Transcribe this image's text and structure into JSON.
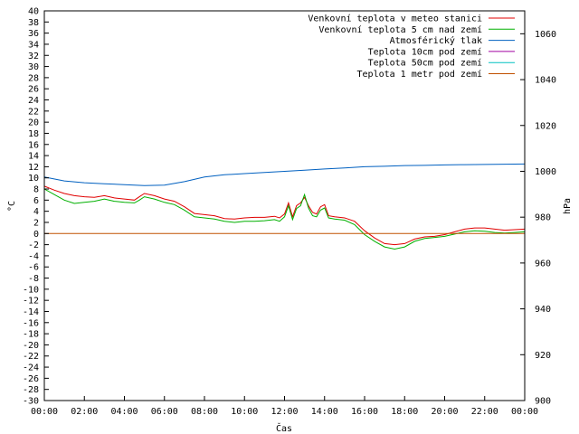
{
  "chart_data": {
    "type": "line",
    "xlabel": "Čas",
    "ylabel": "°C",
    "y2label": "hPa",
    "ylim": [
      -30,
      40
    ],
    "y2lim": [
      900,
      1070
    ],
    "xlim": [
      0,
      24
    ],
    "yticks": [
      "-30",
      "-28",
      "-26",
      "-24",
      "-22",
      "-20",
      "-18",
      "-16",
      "-14",
      "-12",
      "-10",
      "-8",
      "-6",
      "-4",
      "-2",
      "0",
      "2",
      "4",
      "6",
      "8",
      "10",
      "12",
      "14",
      "16",
      "18",
      "20",
      "22",
      "24",
      "26",
      "28",
      "30",
      "32",
      "34",
      "36",
      "38",
      "40"
    ],
    "y2ticks": [
      "900",
      "920",
      "940",
      "960",
      "980",
      "1000",
      "1020",
      "1040",
      "1060"
    ],
    "xticks": [
      "00:00",
      "02:00",
      "04:00",
      "06:00",
      "08:00",
      "10:00",
      "12:00",
      "14:00",
      "16:00",
      "18:00",
      "20:00",
      "22:00",
      "00:00"
    ],
    "grid": false,
    "legend_position": "top-right",
    "series": [
      {
        "name": "Venkovní teplota v meteo stanici",
        "color": "#e00000",
        "axis": "left",
        "x": [
          0,
          0.5,
          1,
          1.5,
          2,
          2.5,
          3,
          3.5,
          4,
          4.5,
          4.75,
          5,
          5.5,
          6,
          6.5,
          7,
          7.5,
          8,
          8.5,
          9,
          9.5,
          10,
          10.5,
          11,
          11.5,
          11.75,
          12,
          12.2,
          12.4,
          12.6,
          12.8,
          13,
          13.2,
          13.4,
          13.6,
          13.8,
          14,
          14.2,
          14.5,
          15,
          15.5,
          16,
          16.5,
          17,
          17.5,
          18,
          18.5,
          19,
          19.5,
          20,
          20.5,
          21,
          21.5,
          22,
          22.5,
          23,
          23.5,
          24
        ],
        "y": [
          8.5,
          7.8,
          7.2,
          6.8,
          6.6,
          6.5,
          6.8,
          6.4,
          6.2,
          6.0,
          6.6,
          7.2,
          6.8,
          6.2,
          5.8,
          4.8,
          3.6,
          3.4,
          3.2,
          2.7,
          2.6,
          2.8,
          2.9,
          2.9,
          3.1,
          2.8,
          3.5,
          5.5,
          3.0,
          5.0,
          5.5,
          6.5,
          5.0,
          3.8,
          3.5,
          4.8,
          5.2,
          3.2,
          3.0,
          2.8,
          2.2,
          0.5,
          -0.8,
          -1.8,
          -2.0,
          -1.8,
          -1.0,
          -0.6,
          -0.5,
          -0.2,
          0.3,
          0.8,
          1.0,
          1.0,
          0.8,
          0.6,
          0.7,
          0.8
        ]
      },
      {
        "name": "Venkovní teplota 5 cm nad zemí",
        "color": "#00b000",
        "axis": "left",
        "x": [
          0,
          0.5,
          1,
          1.5,
          2,
          2.5,
          3,
          3.5,
          4,
          4.5,
          4.75,
          5,
          5.5,
          6,
          6.5,
          7,
          7.5,
          8,
          8.5,
          9,
          9.5,
          10,
          10.5,
          11,
          11.5,
          11.75,
          12,
          12.2,
          12.4,
          12.6,
          12.8,
          13,
          13.2,
          13.4,
          13.6,
          13.8,
          14,
          14.2,
          14.5,
          15,
          15.5,
          16,
          16.5,
          17,
          17.5,
          18,
          18.5,
          19,
          19.5,
          20,
          20.5,
          21,
          21.5,
          22,
          22.5,
          23,
          23.5,
          24
        ],
        "y": [
          8.0,
          7.0,
          6.0,
          5.4,
          5.6,
          5.8,
          6.2,
          5.8,
          5.6,
          5.5,
          6.0,
          6.6,
          6.2,
          5.6,
          5.2,
          4.2,
          3.0,
          2.8,
          2.6,
          2.2,
          2.0,
          2.2,
          2.2,
          2.3,
          2.5,
          2.2,
          3.0,
          5.0,
          2.5,
          4.5,
          5.0,
          7.0,
          4.6,
          3.2,
          3.0,
          4.2,
          4.6,
          2.8,
          2.6,
          2.4,
          1.6,
          -0.2,
          -1.4,
          -2.4,
          -2.8,
          -2.4,
          -1.4,
          -0.9,
          -0.7,
          -0.5,
          -0.1,
          0.3,
          0.5,
          0.4,
          0.2,
          0.1,
          0.2,
          0.3
        ]
      },
      {
        "name": "Atmosférický tlak",
        "color": "#0060c0",
        "axis": "right",
        "x": [
          0,
          1,
          2,
          3,
          4,
          5,
          6,
          7,
          8,
          9,
          10,
          11,
          12,
          13,
          14,
          15,
          16,
          17,
          18,
          19,
          20,
          21,
          22,
          23,
          24
        ],
        "y": [
          997.5,
          995.8,
          995.0,
          994.6,
          994.2,
          993.8,
          994.0,
          995.5,
          997.5,
          998.5,
          999.0,
          999.5,
          1000.0,
          1000.5,
          1001.0,
          1001.5,
          1002.0,
          1002.2,
          1002.5,
          1002.6,
          1002.8,
          1002.9,
          1003.0,
          1003.1,
          1003.2
        ]
      },
      {
        "name": "Teplota 10cm pod zemí",
        "color": "#a000a0",
        "axis": "left",
        "x": [],
        "y": []
      },
      {
        "name": "Teplota 50cm pod zemí",
        "color": "#00c0c0",
        "axis": "left",
        "x": [],
        "y": []
      },
      {
        "name": "Teplota 1 metr pod zemí",
        "color": "#c05000",
        "axis": "left",
        "x": [
          0,
          24
        ],
        "y": [
          0,
          0
        ]
      }
    ]
  }
}
